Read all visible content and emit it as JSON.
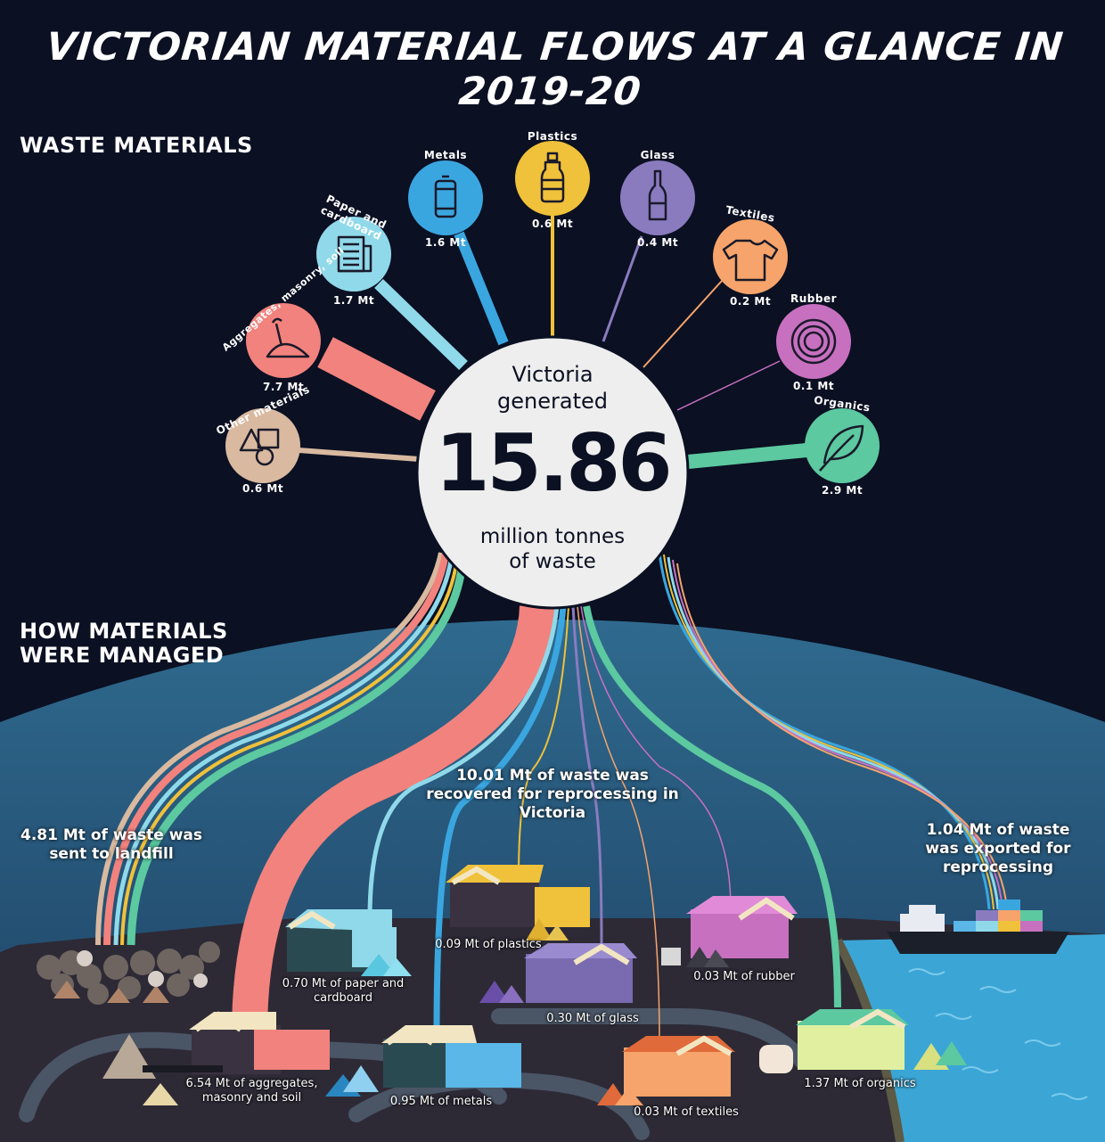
{
  "title": "VICTORIAN MATERIAL FLOWS AT A GLANCE IN 2019-20",
  "sections": {
    "waste_materials": "WASTE MATERIALS",
    "how_managed_1": "HOW MATERIALS",
    "how_managed_2": "WERE MANAGED"
  },
  "center": {
    "line1": "Victoria",
    "line2": "generated",
    "value": "15.86",
    "line3": "million tonnes",
    "line4": "of waste"
  },
  "materials": [
    {
      "id": "other",
      "name": "Other materials",
      "amount": "0.6 Mt",
      "color": "#d9b9a0",
      "icon": "shapes-icon",
      "value": 0.6
    },
    {
      "id": "aggregates",
      "name": "Aggregates, masonry, soil",
      "amount": "7.7 Mt",
      "color": "#f2827d",
      "icon": "shovel-icon",
      "value": 7.7
    },
    {
      "id": "paper",
      "name": "Paper and cardboard",
      "amount": "1.7 Mt",
      "color": "#8fd9ea",
      "icon": "newspaper-icon",
      "value": 1.7
    },
    {
      "id": "metals",
      "name": "Metals",
      "amount": "1.6 Mt",
      "color": "#3aa6e0",
      "icon": "can-icon",
      "value": 1.6
    },
    {
      "id": "plastics",
      "name": "Plastics",
      "amount": "0.6 Mt",
      "color": "#f0c13a",
      "icon": "bottle-icon",
      "value": 0.6
    },
    {
      "id": "glass",
      "name": "Glass",
      "amount": "0.4 Mt",
      "color": "#8a7bbf",
      "icon": "glass-bottle-icon",
      "value": 0.4
    },
    {
      "id": "textiles",
      "name": "Textiles",
      "amount": "0.2 Mt",
      "color": "#f6a46b",
      "icon": "tshirt-icon",
      "value": 0.2
    },
    {
      "id": "rubber",
      "name": "Rubber",
      "amount": "0.1 Mt",
      "color": "#c870c0",
      "icon": "tyre-icon",
      "value": 0.1
    },
    {
      "id": "organics",
      "name": "Organics",
      "amount": "2.9 Mt",
      "color": "#5cc9a0",
      "icon": "leaf-icon",
      "value": 2.9
    }
  ],
  "outcomes": {
    "landfill": "4.81 Mt of waste was sent to landfill",
    "recovered": "10.01 Mt of waste was recovered for reprocessing in Victoria",
    "exported": "1.04 Mt of waste was exported for reprocessing"
  },
  "facilities": {
    "plastics": "0.09 Mt of plastics",
    "paper": "0.70 Mt of paper and cardboard",
    "rubber": "0.03 Mt of rubber",
    "glass": "0.30 Mt of glass",
    "aggregates": "6.54 Mt of aggregates, masonry and soil",
    "metals": "0.95 Mt of metals",
    "textiles": "0.03 Mt of textiles",
    "organics": "1.37 Mt of organics"
  }
}
